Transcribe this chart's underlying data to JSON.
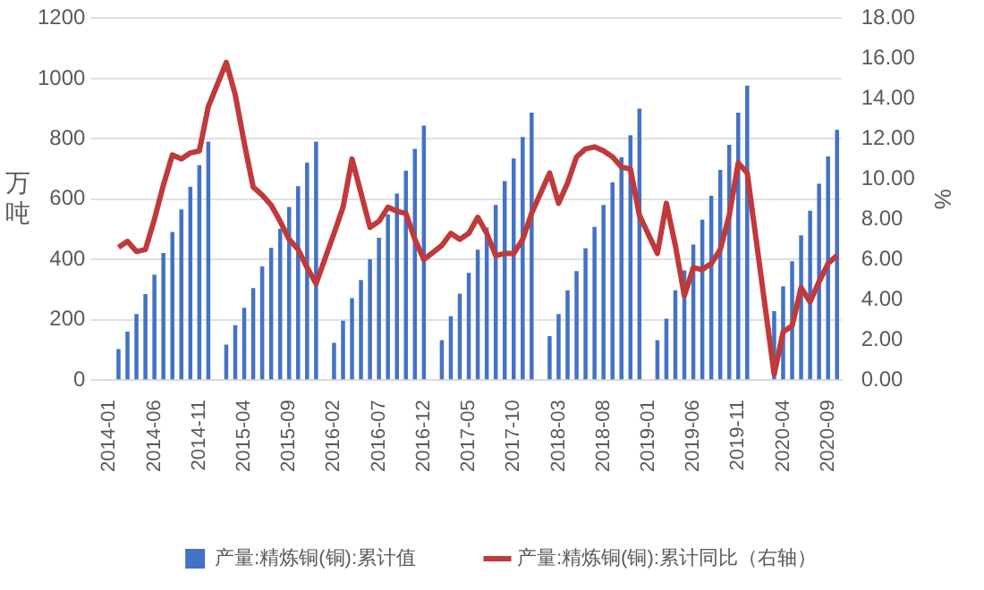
{
  "chart_data": {
    "type": "bar",
    "categories": [
      "2014-01",
      null,
      null,
      null,
      null,
      "2014-06",
      null,
      null,
      null,
      null,
      "2014-11",
      null,
      null,
      null,
      null,
      "2015-04",
      null,
      null,
      null,
      null,
      "2015-09",
      null,
      null,
      null,
      null,
      "2016-02",
      null,
      null,
      null,
      null,
      "2016-07",
      null,
      null,
      null,
      null,
      "2016-12",
      null,
      null,
      null,
      null,
      "2017-05",
      null,
      null,
      null,
      null,
      "2017-10",
      null,
      null,
      null,
      null,
      "2018-03",
      null,
      null,
      null,
      null,
      "2018-08",
      null,
      null,
      null,
      null,
      "2019-01",
      null,
      null,
      null,
      null,
      "2019-06",
      null,
      null,
      null,
      null,
      "2019-11",
      null,
      null,
      null,
      null,
      "2020-04",
      null,
      null,
      null,
      null,
      "2020-09",
      null
    ],
    "series": [
      {
        "name": "产量:精炼铜(铜):累计值",
        "color": "#4472c4",
        "values": [
          null,
          103,
          161,
          219,
          285,
          350,
          422,
          491,
          566,
          641,
          713,
          791,
          null,
          118,
          182,
          240,
          305,
          377,
          439,
          502,
          574,
          643,
          722,
          791,
          null,
          124,
          197,
          272,
          332,
          401,
          472,
          549,
          619,
          694,
          767,
          844,
          null,
          133,
          212,
          287,
          356,
          433,
          506,
          581,
          660,
          735,
          806,
          887,
          null,
          146,
          219,
          298,
          362,
          437,
          508,
          581,
          656,
          739,
          812,
          900,
          null,
          133,
          204,
          298,
          364,
          450,
          532,
          611,
          697,
          780,
          887,
          977,
          null,
          null,
          229,
          311,
          394,
          480,
          562,
          651,
          742,
          830
        ]
      },
      {
        "name": "产量:精炼铜(铜):累计同比（右轴）",
        "type": "line",
        "axis": "y2",
        "color": "#c0393b",
        "values": [
          null,
          6.6,
          6.9,
          6.4,
          6.5,
          8.0,
          9.7,
          11.2,
          11.0,
          11.3,
          11.4,
          13.6,
          null,
          15.8,
          14.2,
          11.8,
          9.6,
          9.2,
          8.7,
          7.9,
          7.0,
          6.5,
          5.6,
          4.8,
          null,
          7.3,
          8.6,
          11.0,
          9.3,
          7.6,
          7.9,
          8.6,
          8.4,
          8.3,
          7.0,
          6.0,
          null,
          6.7,
          7.3,
          7.0,
          7.3,
          8.1,
          7.3,
          6.2,
          6.3,
          6.3,
          7.0,
          8.3,
          null,
          10.3,
          8.8,
          9.8,
          11.1,
          11.5,
          11.6,
          11.4,
          11.1,
          10.6,
          10.5,
          8.2,
          null,
          6.3,
          8.8,
          6.7,
          4.2,
          5.6,
          5.5,
          5.8,
          6.5,
          8.2,
          10.8,
          10.3,
          null,
          null,
          0.3,
          2.4,
          2.7,
          4.6,
          3.9,
          4.9,
          5.8,
          6.2
        ]
      }
    ],
    "ylabel": "万吨",
    "y2label": "%",
    "ylim": [
      0,
      1200
    ],
    "yticks": [
      0,
      200,
      400,
      600,
      800,
      1000,
      1200
    ],
    "y2lim": [
      0,
      18
    ],
    "y2ticks": [
      {
        "value": 0,
        "label": "0.00"
      },
      {
        "value": 2,
        "label": "2.00"
      },
      {
        "value": 4,
        "label": "4.00"
      },
      {
        "value": 6,
        "label": "6.00"
      },
      {
        "value": 8,
        "label": "8.00"
      },
      {
        "value": 10,
        "label": "10.00"
      },
      {
        "value": 12,
        "label": "12.00"
      },
      {
        "value": 14,
        "label": "14.00"
      },
      {
        "value": 16,
        "label": "16.00"
      },
      {
        "value": 18,
        "label": "18.00"
      }
    ],
    "grid": "y",
    "legend": "bottom",
    "marker": "none",
    "line_style": "solid"
  }
}
